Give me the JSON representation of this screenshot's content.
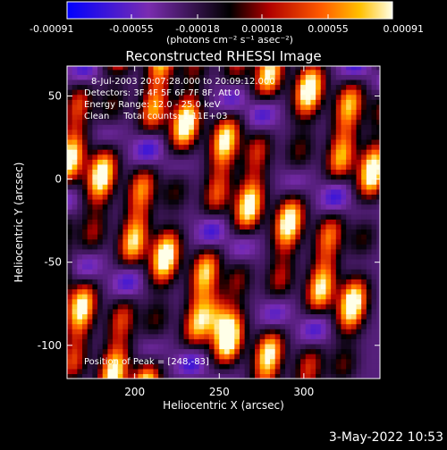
{
  "chart_data": {
    "type": "heatmap",
    "title": "Reconstructed RHESSI Image",
    "xlabel": "Heliocentric X (arcsec)",
    "ylabel": "Heliocentric Y (arcsec)",
    "xlim": [
      160,
      345
    ],
    "ylim": [
      -120,
      68
    ],
    "x_ticks": [
      200,
      250,
      300
    ],
    "y_ticks": [
      50,
      0,
      -50,
      -100
    ],
    "colorbar": {
      "unit_label": "(photons cm⁻² s⁻¹ asec⁻²)",
      "tick_labels": [
        "-0.00091",
        "-0.00055",
        "-0.00018",
        "0.00018",
        "0.00055",
        "0.00091"
      ],
      "range": [
        -0.00091,
        0.00091
      ]
    },
    "annotations": [
      "8-Jul-2003 20:07:28.000 to 20:09:12.000",
      "Detectors: 3F 4F 5F 6F 7F 8F, Att 0",
      "Energy Range: 12.0 - 25.0 keV",
      "Clean     Total counts: 1.11E+03"
    ],
    "peak_label": "Position of Peak = [248,-83]",
    "peak": [
      248,
      -83
    ],
    "ridges_x": [
      160,
      180,
      205,
      225,
      250,
      270,
      295,
      320,
      340
    ],
    "ridge_slope": 0.15
  },
  "timestamp": "3-May-2022 10:53",
  "colors": {
    "background": "#000000",
    "text": "#ffffff"
  }
}
